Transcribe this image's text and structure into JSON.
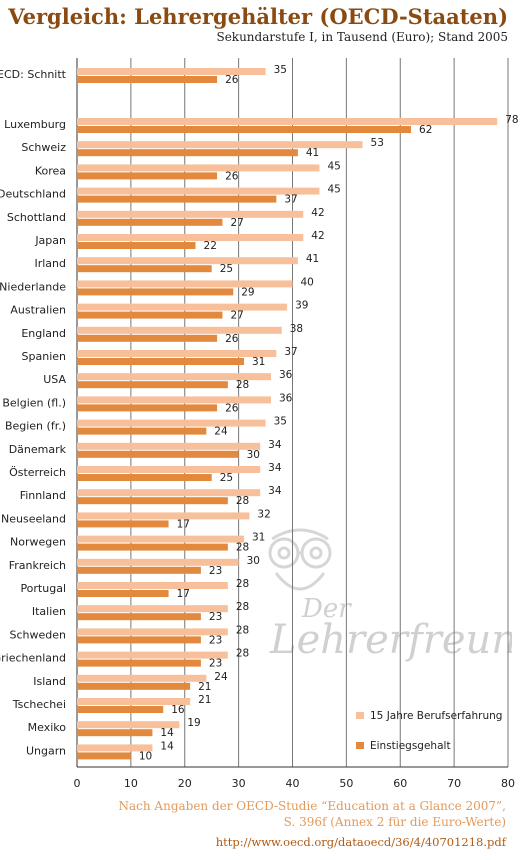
{
  "header": {
    "title": "Vergleich: Lehrergehälter  (OECD-Staaten)",
    "subtitle": "Sekundarstufe I, in Tausend (Euro); Stand 2005"
  },
  "source": {
    "line1": "Nach Angaben der OECD-Studie “Education at a Glance 2007”,",
    "line2": "S. 396f (Annex 2 für die Euro-Werte)",
    "line3": "http://www.oecd.org/dataoecd/36/4/40701218.pdf"
  },
  "watermark": {
    "text": "Der Lehrerfreund"
  },
  "colors": {
    "light": "#f7c09a",
    "dark": "#e2893e",
    "grid": "#777777",
    "axis": "#333333"
  },
  "chart_data": {
    "type": "bar",
    "orientation": "horizontal",
    "categories": [
      "OECD: Schnitt",
      "Luxemburg",
      "Schweiz",
      "Korea",
      "Deutschland",
      "Schottland",
      "Japan",
      "Irland",
      "Niederlande",
      "Australien",
      "England",
      "Spanien",
      "USA",
      "Belgien (fl.)",
      "Begien (fr.)",
      "Dänemark",
      "Österreich",
      "Finnland",
      "Neuseeland",
      "Norwegen",
      "Frankreich",
      "Portugal",
      "Italien",
      "Schweden",
      "Griechenland",
      "Island",
      "Tschechei",
      "Mexiko",
      "Ungarn"
    ],
    "series": [
      {
        "name": "15 Jahre Berufserfahrung",
        "color": "#f7c09a",
        "values": [
          35,
          78,
          53,
          45,
          45,
          42,
          42,
          41,
          40,
          39,
          38,
          37,
          36,
          36,
          35,
          34,
          34,
          34,
          32,
          31,
          30,
          28,
          28,
          28,
          28,
          24,
          21,
          19,
          14
        ]
      },
      {
        "name": "Einstiegsgehalt",
        "color": "#e2893e",
        "values": [
          26,
          62,
          41,
          26,
          37,
          27,
          22,
          25,
          29,
          27,
          26,
          31,
          28,
          26,
          24,
          30,
          25,
          28,
          17,
          28,
          23,
          17,
          23,
          23,
          23,
          21,
          16,
          14,
          10
        ]
      }
    ],
    "xlim": [
      0,
      80
    ],
    "xticks": [
      0,
      10,
      20,
      30,
      40,
      50,
      60,
      70,
      80
    ],
    "grid": true,
    "legend_position": "bottom-right"
  }
}
